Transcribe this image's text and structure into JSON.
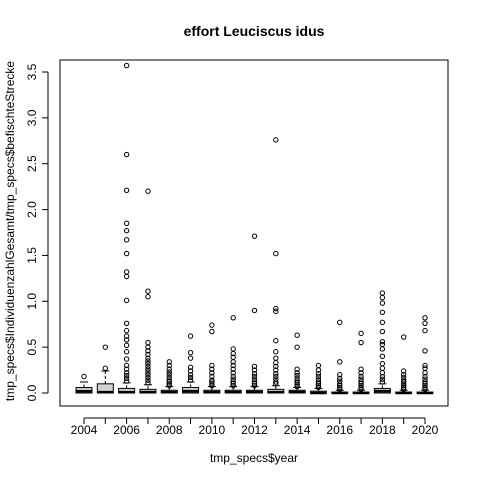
{
  "chart_data": {
    "type": "boxplot",
    "title": "effort Leuciscus idus",
    "xlabel": "tmp_specs$year",
    "ylabel": "tmp_specs$IndividuenzahlGesamt/tmp_specs$befischteStrecke",
    "ylim": [
      0,
      3.6
    ],
    "y_ticks": [
      "0.0",
      "0.5",
      "1.0",
      "1.5",
      "2.0",
      "2.5",
      "3.0",
      "3.5"
    ],
    "x_tick_labels": [
      "2004",
      "2006",
      "2008",
      "2010",
      "2012",
      "2014",
      "2016",
      "2018",
      "2020"
    ],
    "grid": false,
    "legend": "none",
    "categories": [
      "2004",
      "2005",
      "2006",
      "2007",
      "2008",
      "2009",
      "2010",
      "2011",
      "2012",
      "2013",
      "2014",
      "2015",
      "2016",
      "2017",
      "2018",
      "2019",
      "2020"
    ],
    "boxes": [
      {
        "year": "2004",
        "min": 0.0,
        "q1": 0.0,
        "median": 0.02,
        "q3": 0.06,
        "max": 0.12,
        "outliers": [
          0.18
        ]
      },
      {
        "year": "2005",
        "min": 0.0,
        "q1": 0.0,
        "median": 0.01,
        "q3": 0.1,
        "max": 0.24,
        "outliers": [
          0.27,
          0.5
        ]
      },
      {
        "year": "2006",
        "min": 0.0,
        "q1": 0.0,
        "median": 0.01,
        "q3": 0.05,
        "max": 0.11,
        "outliers": [
          0.13,
          0.16,
          0.19,
          0.22,
          0.26,
          0.3,
          0.37,
          0.45,
          0.52,
          0.58,
          0.62,
          0.68,
          0.76,
          1.01,
          1.27,
          1.32,
          1.52,
          1.67,
          1.77,
          1.85,
          2.21,
          2.6,
          3.57
        ]
      },
      {
        "year": "2007",
        "min": 0.0,
        "q1": 0.0,
        "median": 0.01,
        "q3": 0.04,
        "max": 0.09,
        "outliers": [
          0.11,
          0.14,
          0.17,
          0.2,
          0.23,
          0.26,
          0.29,
          0.32,
          0.35,
          0.38,
          0.42,
          0.46,
          0.5,
          0.55,
          1.05,
          1.11,
          2.2
        ]
      },
      {
        "year": "2008",
        "min": 0.0,
        "q1": 0.0,
        "median": 0.01,
        "q3": 0.03,
        "max": 0.07,
        "outliers": [
          0.08,
          0.1,
          0.12,
          0.14,
          0.17,
          0.2,
          0.23,
          0.26,
          0.3,
          0.34
        ]
      },
      {
        "year": "2009",
        "min": 0.0,
        "q1": 0.0,
        "median": 0.02,
        "q3": 0.06,
        "max": 0.12,
        "outliers": [
          0.14,
          0.17,
          0.2,
          0.24,
          0.28,
          0.38,
          0.44,
          0.62
        ]
      },
      {
        "year": "2010",
        "min": 0.0,
        "q1": 0.0,
        "median": 0.01,
        "q3": 0.03,
        "max": 0.07,
        "outliers": [
          0.08,
          0.1,
          0.12,
          0.14,
          0.18,
          0.22,
          0.26,
          0.3,
          0.67,
          0.74
        ]
      },
      {
        "year": "2011",
        "min": 0.0,
        "q1": 0.0,
        "median": 0.01,
        "q3": 0.03,
        "max": 0.07,
        "outliers": [
          0.08,
          0.1,
          0.12,
          0.15,
          0.18,
          0.22,
          0.26,
          0.3,
          0.34,
          0.39,
          0.43,
          0.48,
          0.82
        ]
      },
      {
        "year": "2012",
        "min": 0.0,
        "q1": 0.0,
        "median": 0.01,
        "q3": 0.03,
        "max": 0.07,
        "outliers": [
          0.08,
          0.1,
          0.12,
          0.15,
          0.18,
          0.21,
          0.25,
          0.29,
          0.9,
          1.71
        ]
      },
      {
        "year": "2013",
        "min": 0.0,
        "q1": 0.0,
        "median": 0.01,
        "q3": 0.04,
        "max": 0.08,
        "outliers": [
          0.1,
          0.12,
          0.15,
          0.18,
          0.21,
          0.25,
          0.29,
          0.33,
          0.38,
          0.45,
          0.57,
          0.89,
          0.92,
          1.52,
          2.76
        ]
      },
      {
        "year": "2014",
        "min": 0.0,
        "q1": 0.0,
        "median": 0.01,
        "q3": 0.03,
        "max": 0.06,
        "outliers": [
          0.07,
          0.09,
          0.11,
          0.13,
          0.16,
          0.19,
          0.22,
          0.26,
          0.5,
          0.63
        ]
      },
      {
        "year": "2015",
        "min": 0.0,
        "q1": 0.0,
        "median": 0.0,
        "q3": 0.02,
        "max": 0.05,
        "outliers": [
          0.06,
          0.08,
          0.1,
          0.12,
          0.15,
          0.18,
          0.21,
          0.25,
          0.3
        ]
      },
      {
        "year": "2016",
        "min": 0.0,
        "q1": 0.0,
        "median": 0.0,
        "q3": 0.01,
        "max": 0.03,
        "outliers": [
          0.04,
          0.06,
          0.08,
          0.1,
          0.13,
          0.16,
          0.2,
          0.34,
          0.77
        ]
      },
      {
        "year": "2017",
        "min": 0.0,
        "q1": 0.0,
        "median": 0.0,
        "q3": 0.01,
        "max": 0.03,
        "outliers": [
          0.04,
          0.06,
          0.08,
          0.1,
          0.12,
          0.15,
          0.18,
          0.22,
          0.26,
          0.55,
          0.65
        ]
      },
      {
        "year": "2018",
        "min": 0.0,
        "q1": 0.0,
        "median": 0.02,
        "q3": 0.05,
        "max": 0.1,
        "outliers": [
          0.12,
          0.15,
          0.18,
          0.22,
          0.27,
          0.32,
          0.4,
          0.48,
          0.53,
          0.56,
          0.67,
          0.77,
          0.88,
          0.98,
          1.04,
          1.09
        ]
      },
      {
        "year": "2019",
        "min": 0.0,
        "q1": 0.0,
        "median": 0.0,
        "q3": 0.01,
        "max": 0.03,
        "outliers": [
          0.04,
          0.06,
          0.08,
          0.1,
          0.12,
          0.14,
          0.17,
          0.2,
          0.24,
          0.61
        ]
      },
      {
        "year": "2020",
        "min": 0.0,
        "q1": 0.0,
        "median": 0.0,
        "q3": 0.01,
        "max": 0.03,
        "outliers": [
          0.04,
          0.06,
          0.08,
          0.1,
          0.12,
          0.15,
          0.18,
          0.22,
          0.27,
          0.3,
          0.46,
          0.68,
          0.76,
          0.82
        ]
      }
    ],
    "colors": {
      "box_fill": "#d3d3d3",
      "stroke": "#000000",
      "background": "#ffffff"
    }
  }
}
